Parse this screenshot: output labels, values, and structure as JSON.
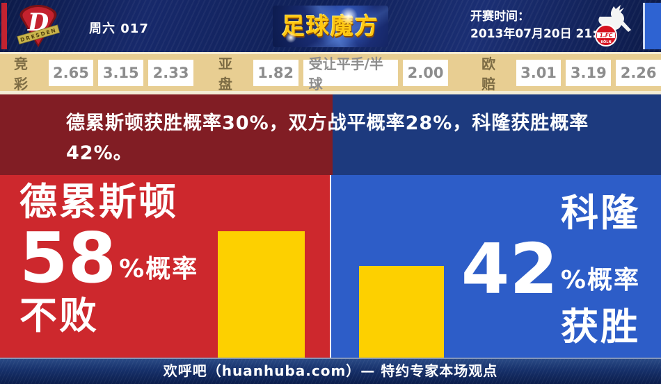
{
  "header": {
    "match_code": "周六 017",
    "brand_logo_text": "足球魔方",
    "kickoff_label": "开赛时间：",
    "kickoff_time": "2013年07月20日 21:30",
    "home_crest_text": "DRESDEN",
    "home_crest_letter": "D",
    "away_crest_line1": "1.FC",
    "away_crest_line2": "KÖLN"
  },
  "odds_bar": {
    "jingcai": {
      "label": "竞彩",
      "values": [
        "2.65",
        "3.15",
        "2.33"
      ]
    },
    "yapan": {
      "label": "亚盘",
      "home": "1.82",
      "handicap": "受让平手/半球",
      "away": "2.00"
    },
    "oupei": {
      "label": "欧赔",
      "values": [
        "3.01",
        "3.19",
        "2.26"
      ]
    }
  },
  "analysis": {
    "summary": "德累斯顿获胜概率30%，双方战平概率28%，科隆获胜概率42%。"
  },
  "left_panel": {
    "team": "德累斯顿",
    "value": "58",
    "unit": "%概率",
    "outcome": "不败"
  },
  "right_panel": {
    "team": "科隆",
    "value": "42",
    "unit": "%概率",
    "outcome": "获胜"
  },
  "footer": {
    "text": "欢呼吧（huanhuba.com）— 特约专家本场观点"
  },
  "colors": {
    "home_dark": "#811d24",
    "home_bright": "#cd282d",
    "away_dark": "#1d3a7e",
    "away_bright": "#2d5dc8",
    "bar_yellow": "#fdd000",
    "odds_bg": "#e8ce92"
  },
  "chart_data": {
    "type": "bar",
    "categories": [
      "德累斯顿",
      "科隆"
    ],
    "values": [
      58,
      42
    ],
    "unit": "%",
    "value_labels": [
      "58%概率不败",
      "42%概率获胜"
    ],
    "bar_color": "#fdd000",
    "ylim": [
      0,
      100
    ],
    "annotations": {
      "home_win_pct": 30,
      "draw_pct": 28,
      "away_win_pct": 42
    }
  }
}
